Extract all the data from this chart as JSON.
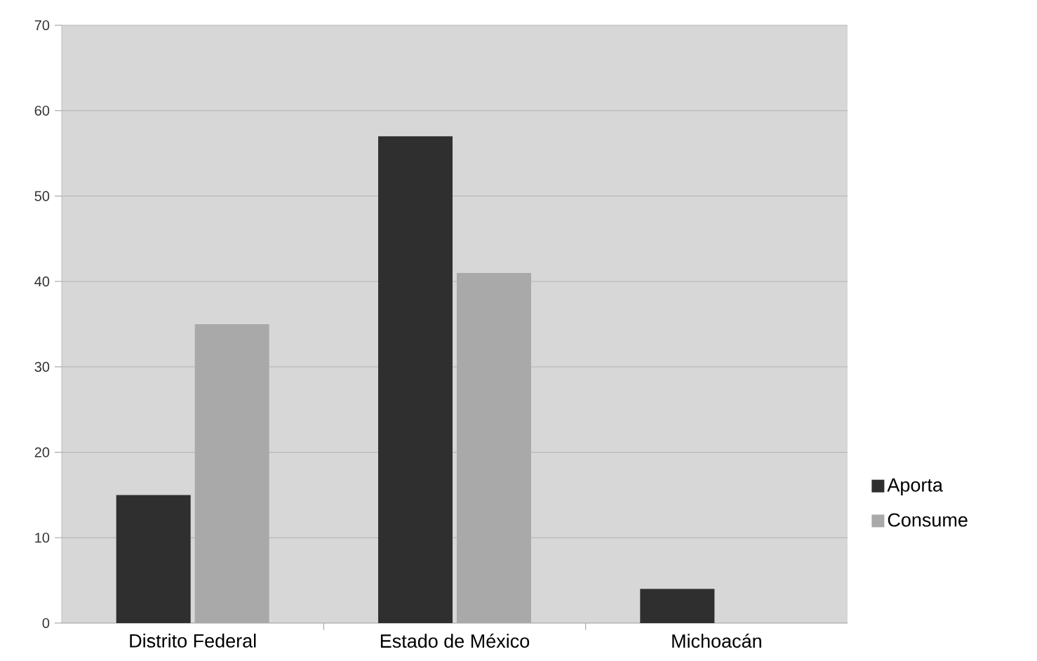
{
  "chart_data": {
    "type": "bar",
    "categories": [
      "Distrito Federal",
      "Estado de México",
      "Michoacán"
    ],
    "series": [
      {
        "name": "Aporta",
        "color": "#2f2f2f",
        "values": [
          15,
          57,
          4
        ]
      },
      {
        "name": "Consume",
        "color": "#a9a9a9",
        "values": [
          35,
          41,
          0
        ]
      }
    ],
    "ylim": [
      0,
      70
    ],
    "yticks": [
      0,
      10,
      20,
      30,
      40,
      50,
      60,
      70
    ],
    "grid": "y",
    "legend": "right"
  }
}
